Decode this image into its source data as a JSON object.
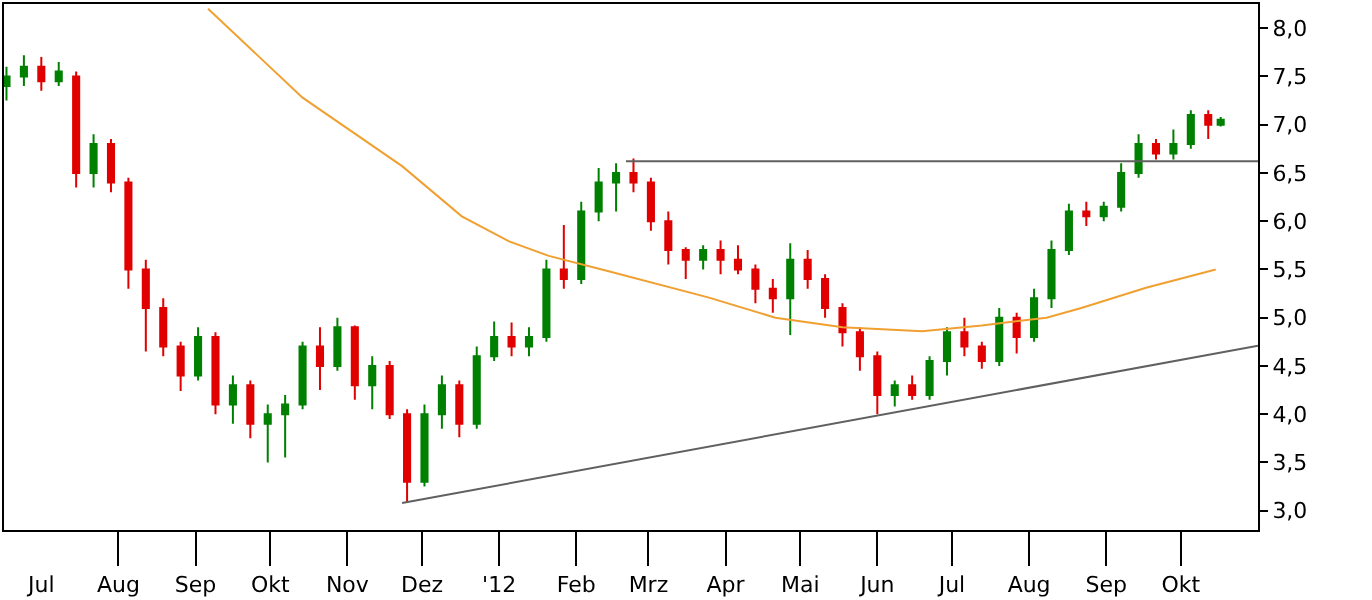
{
  "chart_data": {
    "type": "candlestick",
    "xlim": [
      "2011-06-16",
      "2012-11-01"
    ],
    "xticks": [
      {
        "value": "2011-07-01",
        "label": "Jul"
      },
      {
        "value": "2011-08-01",
        "label": "Aug"
      },
      {
        "value": "2011-09-01",
        "label": "Sep"
      },
      {
        "value": "2011-10-01",
        "label": "Okt"
      },
      {
        "value": "2011-11-01",
        "label": "Nov"
      },
      {
        "value": "2011-12-01",
        "label": "Dez"
      },
      {
        "value": "2012-01-01",
        "label": "'12"
      },
      {
        "value": "2012-02-01",
        "label": "Feb"
      },
      {
        "value": "2012-03-01",
        "label": "Mrz"
      },
      {
        "value": "2012-04-01",
        "label": "Apr"
      },
      {
        "value": "2012-05-01",
        "label": "Mai"
      },
      {
        "value": "2012-06-01",
        "label": "Jun"
      },
      {
        "value": "2012-07-01",
        "label": "Jul"
      },
      {
        "value": "2012-08-01",
        "label": "Aug"
      },
      {
        "value": "2012-09-01",
        "label": "Sep"
      },
      {
        "value": "2012-10-01",
        "label": "Okt"
      }
    ],
    "ylim": [
      2.8,
      8.25
    ],
    "yticks": [
      {
        "value": 3.0,
        "label": "3,0"
      },
      {
        "value": 3.5,
        "label": "3,5"
      },
      {
        "value": 4.0,
        "label": "4,0"
      },
      {
        "value": 4.5,
        "label": "4,5"
      },
      {
        "value": 5.0,
        "label": "5,0"
      },
      {
        "value": 5.5,
        "label": "5,5"
      },
      {
        "value": 6.0,
        "label": "6,0"
      },
      {
        "value": 6.5,
        "label": "6,5"
      },
      {
        "value": 7.0,
        "label": "7,0"
      },
      {
        "value": 7.5,
        "label": "7,5"
      },
      {
        "value": 8.0,
        "label": "8,0"
      }
    ],
    "series": [
      {
        "x": [
          "2011-06-17",
          "2011-06-24",
          "2011-07-01",
          "2011-07-08",
          "2011-07-15",
          "2011-07-22",
          "2011-07-29",
          "2011-08-05",
          "2011-08-12",
          "2011-08-19",
          "2011-08-26",
          "2011-09-02",
          "2011-09-09",
          "2011-09-16",
          "2011-09-23",
          "2011-09-30",
          "2011-10-07",
          "2011-10-14",
          "2011-10-21",
          "2011-10-28",
          "2011-11-04",
          "2011-11-11",
          "2011-11-18",
          "2011-11-25",
          "2011-12-02",
          "2011-12-09",
          "2011-12-16",
          "2011-12-23",
          "2011-12-30",
          "2012-01-06",
          "2012-01-13",
          "2012-01-20",
          "2012-01-27",
          "2012-02-03",
          "2012-02-10",
          "2012-02-17",
          "2012-02-24",
          "2012-03-02",
          "2012-03-09",
          "2012-03-16",
          "2012-03-23",
          "2012-03-30",
          "2012-04-06",
          "2012-04-13",
          "2012-04-20",
          "2012-04-27",
          "2012-05-04",
          "2012-05-11",
          "2012-05-18",
          "2012-05-25",
          "2012-06-01",
          "2012-06-08",
          "2012-06-15",
          "2012-06-22",
          "2012-06-29",
          "2012-07-06",
          "2012-07-13",
          "2012-07-20",
          "2012-07-27",
          "2012-08-03",
          "2012-08-10",
          "2012-08-17",
          "2012-08-24",
          "2012-08-31",
          "2012-09-07",
          "2012-09-14",
          "2012-09-21",
          "2012-09-28",
          "2012-10-05",
          "2012-10-12",
          "2012-10-17"
        ],
        "ohlc": [
          [
            7.4,
            7.6,
            7.25,
            7.5
          ],
          [
            7.5,
            7.72,
            7.4,
            7.6
          ],
          [
            7.6,
            7.7,
            7.35,
            7.45
          ],
          [
            7.45,
            7.65,
            7.4,
            7.55
          ],
          [
            7.5,
            7.55,
            6.35,
            6.5
          ],
          [
            6.5,
            6.9,
            6.35,
            6.8
          ],
          [
            6.8,
            6.85,
            6.3,
            6.4
          ],
          [
            6.4,
            6.45,
            5.3,
            5.5
          ],
          [
            5.5,
            5.6,
            4.65,
            5.1
          ],
          [
            5.1,
            5.2,
            4.6,
            4.7
          ],
          [
            4.7,
            4.75,
            4.24,
            4.4
          ],
          [
            4.4,
            4.9,
            4.35,
            4.8
          ],
          [
            4.8,
            4.85,
            4.0,
            4.1
          ],
          [
            4.1,
            4.4,
            3.9,
            4.3
          ],
          [
            4.3,
            4.35,
            3.75,
            3.9
          ],
          [
            3.9,
            4.1,
            3.5,
            4.0
          ],
          [
            4.0,
            4.2,
            3.55,
            4.1
          ],
          [
            4.1,
            4.75,
            4.05,
            4.7
          ],
          [
            4.7,
            4.9,
            4.25,
            4.5
          ],
          [
            4.5,
            5.0,
            4.45,
            4.9
          ],
          [
            4.9,
            4.92,
            4.15,
            4.3
          ],
          [
            4.3,
            4.6,
            4.05,
            4.5
          ],
          [
            4.5,
            4.55,
            3.95,
            4.0
          ],
          [
            4.0,
            4.05,
            3.08,
            3.3
          ],
          [
            3.3,
            4.1,
            3.25,
            4.0
          ],
          [
            4.0,
            4.4,
            3.85,
            4.3
          ],
          [
            4.3,
            4.35,
            3.76,
            3.9
          ],
          [
            3.9,
            4.7,
            3.85,
            4.6
          ],
          [
            4.6,
            4.96,
            4.55,
            4.8
          ],
          [
            4.8,
            4.95,
            4.6,
            4.7
          ],
          [
            4.7,
            4.9,
            4.6,
            4.8
          ],
          [
            4.8,
            5.6,
            4.75,
            5.5
          ],
          [
            5.5,
            5.96,
            5.3,
            5.4
          ],
          [
            5.4,
            6.2,
            5.35,
            6.1
          ],
          [
            6.1,
            6.55,
            6.0,
            6.4
          ],
          [
            6.4,
            6.6,
            6.1,
            6.5
          ],
          [
            6.5,
            6.65,
            6.3,
            6.4
          ],
          [
            6.4,
            6.45,
            5.9,
            6.0
          ],
          [
            6.0,
            6.1,
            5.55,
            5.7
          ],
          [
            5.7,
            5.73,
            5.4,
            5.6
          ],
          [
            5.6,
            5.75,
            5.5,
            5.7
          ],
          [
            5.7,
            5.8,
            5.45,
            5.6
          ],
          [
            5.6,
            5.75,
            5.45,
            5.5
          ],
          [
            5.5,
            5.55,
            5.15,
            5.3
          ],
          [
            5.3,
            5.4,
            5.05,
            5.2
          ],
          [
            5.2,
            5.77,
            4.82,
            5.6
          ],
          [
            5.6,
            5.7,
            5.3,
            5.4
          ],
          [
            5.4,
            5.45,
            5.0,
            5.1
          ],
          [
            5.1,
            5.15,
            4.7,
            4.85
          ],
          [
            4.85,
            4.9,
            4.45,
            4.6
          ],
          [
            4.6,
            4.65,
            4.0,
            4.2
          ],
          [
            4.2,
            4.35,
            4.08,
            4.3
          ],
          [
            4.3,
            4.4,
            4.15,
            4.2
          ],
          [
            4.2,
            4.6,
            4.15,
            4.55
          ],
          [
            4.55,
            4.9,
            4.4,
            4.85
          ],
          [
            4.85,
            5.0,
            4.6,
            4.7
          ],
          [
            4.7,
            4.75,
            4.47,
            4.55
          ],
          [
            4.55,
            5.1,
            4.5,
            5.0
          ],
          [
            5.0,
            5.05,
            4.63,
            4.8
          ],
          [
            4.8,
            5.3,
            4.75,
            5.2
          ],
          [
            5.2,
            5.8,
            5.1,
            5.7
          ],
          [
            5.7,
            6.18,
            5.65,
            6.1
          ],
          [
            6.1,
            6.2,
            5.95,
            6.05
          ],
          [
            6.05,
            6.2,
            6.0,
            6.15
          ],
          [
            6.15,
            6.6,
            6.1,
            6.5
          ],
          [
            6.5,
            6.9,
            6.45,
            6.8
          ],
          [
            6.8,
            6.85,
            6.64,
            6.7
          ],
          [
            6.7,
            6.95,
            6.64,
            6.8
          ],
          [
            6.8,
            7.15,
            6.75,
            7.1
          ],
          [
            7.1,
            7.15,
            6.85,
            7.0
          ],
          [
            7.0,
            7.08,
            6.98,
            7.05
          ]
        ],
        "colors": [
          "#008000",
          "#008000",
          "#e00000",
          "#008000",
          "#e00000",
          "#008000",
          "#e00000",
          "#e00000",
          "#e00000",
          "#e00000",
          "#e00000",
          "#008000",
          "#e00000",
          "#008000",
          "#e00000",
          "#008000",
          "#008000",
          "#008000",
          "#e00000",
          "#008000",
          "#e00000",
          "#008000",
          "#e00000",
          "#e00000",
          "#008000",
          "#008000",
          "#e00000",
          "#008000",
          "#008000",
          "#e00000",
          "#008000",
          "#008000",
          "#e00000",
          "#008000",
          "#008000",
          "#008000",
          "#e00000",
          "#e00000",
          "#e00000",
          "#e00000",
          "#008000",
          "#e00000",
          "#e00000",
          "#e00000",
          "#e00000",
          "#008000",
          "#e00000",
          "#e00000",
          "#e00000",
          "#e00000",
          "#e00000",
          "#008000",
          "#e00000",
          "#008000",
          "#008000",
          "#e00000",
          "#e00000",
          "#008000",
          "#e00000",
          "#008000",
          "#008000",
          "#008000",
          "#e00000",
          "#008000",
          "#008000",
          "#008000",
          "#e00000",
          "#008000",
          "#008000",
          "#e00000",
          "#008000"
        ]
      },
      {
        "type": "line",
        "color": "#f0a030",
        "x": [
          "2011-09-06",
          "2011-10-14",
          "2011-11-23",
          "2011-12-17",
          "2012-01-05",
          "2012-01-21",
          "2012-02-14",
          "2012-03-25",
          "2012-04-21",
          "2012-05-18",
          "2012-06-19",
          "2012-07-13",
          "2012-08-08",
          "2012-08-22",
          "2012-09-17",
          "2012-10-15"
        ],
        "values": [
          8.2,
          7.28,
          6.57,
          6.05,
          5.79,
          5.64,
          5.48,
          5.21,
          5.0,
          4.9,
          4.86,
          4.92,
          5.0,
          5.1,
          5.31,
          5.5
        ]
      },
      {
        "type": "line",
        "color": "#606060",
        "x": [
          "2012-02-21",
          "2012-11-01"
        ],
        "values": [
          6.62,
          6.62
        ]
      },
      {
        "type": "line",
        "color": "#606060",
        "x": [
          "2011-11-23",
          "2012-11-01"
        ],
        "values": [
          3.08,
          4.71
        ]
      }
    ]
  }
}
